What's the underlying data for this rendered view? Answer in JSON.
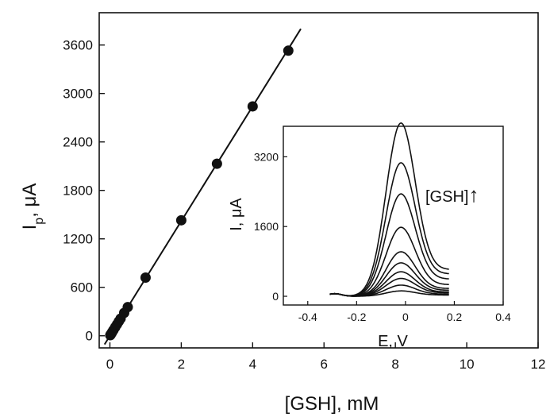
{
  "chart_data": [
    {
      "type": "scatter",
      "xlabel": "[GSH], mM",
      "ylabel_main": "I",
      "ylabel_sub": "p",
      "ylabel_unit": ", μA",
      "xlim": [
        -0.3,
        12
      ],
      "ylim": [
        -150,
        4000
      ],
      "xticks": [
        0,
        2,
        4,
        6,
        8,
        10,
        12
      ],
      "yticks": [
        0,
        600,
        1200,
        1800,
        2400,
        3000,
        3600
      ],
      "grid": false,
      "series": [
        {
          "x": [
            0.01,
            0.02,
            0.03,
            0.05,
            0.07,
            0.1,
            0.15,
            0.2,
            0.25,
            0.3,
            0.4,
            0.5,
            1,
            2,
            3,
            4,
            5
          ],
          "y": [
            7,
            14,
            21,
            35,
            50,
            71,
            107,
            142,
            178,
            213,
            284,
            355,
            720,
            1430,
            2130,
            2840,
            3530
          ]
        }
      ],
      "fit_line": {
        "x": [
          -0.15,
          5.35
        ],
        "y": [
          -107,
          3800
        ]
      }
    },
    {
      "type": "line",
      "xlabel": "E, V",
      "ylabel": "I, μA",
      "xlim": [
        -0.5,
        0.4
      ],
      "ylim": [
        -200,
        3900
      ],
      "xticks": [
        -0.4,
        -0.2,
        0.0,
        0.2,
        0.4
      ],
      "yticks": [
        0,
        1600,
        3200
      ],
      "grid": false,
      "annotation": "[GSH]",
      "annotation_arrow": "↑",
      "series": [
        {
          "peak_x": -0.02,
          "peak": 120,
          "tail": 30
        },
        {
          "peak_x": -0.02,
          "peak": 250,
          "tail": 50
        },
        {
          "peak_x": -0.02,
          "peak": 400,
          "tail": 80
        },
        {
          "peak_x": -0.02,
          "peak": 550,
          "tail": 100
        },
        {
          "peak_x": -0.02,
          "peak": 750,
          "tail": 140
        },
        {
          "peak_x": -0.02,
          "peak": 1000,
          "tail": 180
        },
        {
          "peak_x": -0.02,
          "peak": 1550,
          "tail": 270
        },
        {
          "peak_x": -0.02,
          "peak": 2300,
          "tail": 400
        },
        {
          "peak_x": -0.02,
          "peak": 3000,
          "tail": 520
        },
        {
          "peak_x": -0.02,
          "peak": 3900,
          "tail": 620
        }
      ]
    }
  ]
}
